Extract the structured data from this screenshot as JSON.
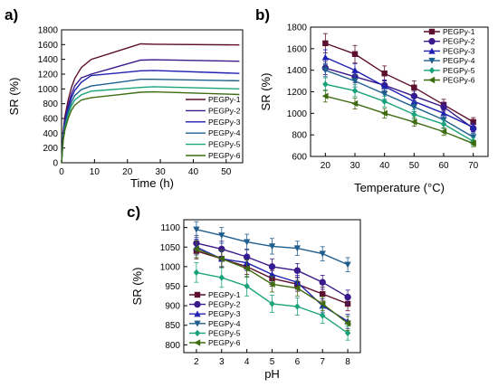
{
  "chart_data": [
    {
      "type": "line",
      "panel_label": "a)",
      "xlabel": "Time (h)",
      "ylabel": "SR (%)",
      "xlim": [
        0,
        55
      ],
      "ylim": [
        0,
        1800
      ],
      "xticks": [
        0,
        10,
        20,
        30,
        40,
        50
      ],
      "yticks": [
        0,
        200,
        400,
        600,
        800,
        1000,
        1200,
        1400,
        1600,
        1800
      ],
      "legend_position": "bottom-right",
      "markers": false,
      "error_bars": false,
      "x": [
        0,
        0.5,
        1,
        2,
        3,
        4,
        6,
        9,
        24,
        28,
        54
      ],
      "series": [
        {
          "name": "PEGPy-1",
          "color": "#5c0f2e",
          "values": [
            0,
            420,
            620,
            850,
            1020,
            1140,
            1290,
            1400,
            1610,
            1605,
            1595
          ]
        },
        {
          "name": "PEGPy-2",
          "color": "#3a1a8a",
          "values": [
            0,
            390,
            570,
            780,
            930,
            1040,
            1150,
            1200,
            1390,
            1395,
            1375
          ]
        },
        {
          "name": "PEGPy-3",
          "color": "#1f1fb0",
          "values": [
            0,
            370,
            540,
            740,
            880,
            980,
            1090,
            1180,
            1245,
            1250,
            1210
          ]
        },
        {
          "name": "PEGPy-4",
          "color": "#1f5f8f",
          "values": [
            0,
            340,
            500,
            690,
            820,
            910,
            990,
            1040,
            1130,
            1130,
            1110
          ]
        },
        {
          "name": "PEGPy-5",
          "color": "#1aa37a",
          "values": [
            0,
            320,
            470,
            650,
            770,
            850,
            920,
            970,
            1020,
            1030,
            1000
          ]
        },
        {
          "name": "PEGPy-6",
          "color": "#3f6b10",
          "values": [
            0,
            300,
            440,
            600,
            710,
            780,
            850,
            880,
            955,
            960,
            925
          ]
        }
      ]
    },
    {
      "type": "line",
      "panel_label": "b)",
      "xlabel": "Temperature (°C)",
      "ylabel": "SR (%)",
      "xlim": [
        15,
        75
      ],
      "ylim": [
        600,
        1800
      ],
      "xticks": [
        20,
        30,
        40,
        50,
        60,
        70
      ],
      "yticks": [
        600,
        800,
        1000,
        1200,
        1400,
        1600,
        1800
      ],
      "legend_position": "top-right",
      "markers": true,
      "error_bars": true,
      "x": [
        20,
        30,
        40,
        50,
        60,
        70
      ],
      "series": [
        {
          "name": "PEGPy-1",
          "color": "#5c0f2e",
          "marker": "square",
          "values": [
            1650,
            1550,
            1370,
            1240,
            1080,
            920
          ],
          "errors": [
            90,
            80,
            70,
            60,
            50,
            40
          ]
        },
        {
          "name": "PEGPy-2",
          "color": "#3a1a8a",
          "marker": "circle",
          "values": [
            1420,
            1340,
            1260,
            1160,
            1060,
            860
          ],
          "errors": [
            60,
            55,
            50,
            45,
            40,
            35
          ]
        },
        {
          "name": "PEGPy-3",
          "color": "#1f1fb0",
          "marker": "triangle-up",
          "values": [
            1520,
            1400,
            1250,
            1110,
            1000,
            870
          ],
          "errors": [
            70,
            60,
            55,
            50,
            45,
            40
          ]
        },
        {
          "name": "PEGPy-4",
          "color": "#1f5f8f",
          "marker": "triangle-down",
          "values": [
            1400,
            1300,
            1180,
            1060,
            940,
            780
          ],
          "errors": [
            60,
            55,
            50,
            45,
            40,
            35
          ]
        },
        {
          "name": "PEGPy-5",
          "color": "#1aa37a",
          "marker": "diamond",
          "values": [
            1270,
            1210,
            1110,
            990,
            900,
            740
          ],
          "errors": [
            60,
            55,
            50,
            45,
            40,
            35
          ]
        },
        {
          "name": "PEGPy-6",
          "color": "#3f6b10",
          "marker": "triangle-left",
          "values": [
            1160,
            1090,
            1000,
            920,
            830,
            720
          ],
          "errors": [
            55,
            50,
            45,
            40,
            35,
            30
          ]
        }
      ]
    },
    {
      "type": "line",
      "panel_label": "c)",
      "xlabel": "pH",
      "ylabel": "SR (%)",
      "xlim": [
        1.5,
        8.5
      ],
      "ylim": [
        780,
        1120
      ],
      "xticks": [
        2,
        3,
        4,
        5,
        6,
        7,
        8
      ],
      "yticks": [
        800,
        850,
        900,
        950,
        1000,
        1050,
        1100
      ],
      "legend_position": "bottom-left",
      "markers": true,
      "error_bars": true,
      "x": [
        2,
        3,
        4,
        5,
        6,
        7,
        8
      ],
      "series": [
        {
          "name": "PEGPy-1",
          "color": "#5c0f2e",
          "marker": "square",
          "values": [
            1040,
            1020,
            1000,
            970,
            955,
            930,
            905
          ],
          "errors": [
            20,
            20,
            20,
            20,
            18,
            18,
            18
          ]
        },
        {
          "name": "PEGPy-2",
          "color": "#3a1a8a",
          "marker": "circle",
          "values": [
            1060,
            1045,
            1025,
            1000,
            990,
            960,
            922
          ],
          "errors": [
            20,
            20,
            20,
            20,
            18,
            18,
            18
          ]
        },
        {
          "name": "PEGPy-3",
          "color": "#1f1fb0",
          "marker": "triangle-up",
          "values": [
            1050,
            1020,
            1010,
            980,
            960,
            900,
            860
          ],
          "errors": [
            20,
            20,
            20,
            20,
            18,
            18,
            18
          ]
        },
        {
          "name": "PEGPy-4",
          "color": "#1f5f8f",
          "marker": "triangle-down",
          "values": [
            1095,
            1080,
            1063,
            1052,
            1047,
            1033,
            1005
          ],
          "errors": [
            20,
            20,
            20,
            20,
            18,
            18,
            18
          ]
        },
        {
          "name": "PEGPy-5",
          "color": "#1aa37a",
          "marker": "diamond",
          "values": [
            985,
            972,
            950,
            905,
            898,
            875,
            830
          ],
          "errors": [
            25,
            25,
            25,
            22,
            22,
            20,
            18
          ]
        },
        {
          "name": "PEGPy-6",
          "color": "#3f6b10",
          "marker": "triangle-left",
          "values": [
            1045,
            1020,
            995,
            955,
            945,
            905,
            855
          ],
          "errors": [
            22,
            22,
            22,
            20,
            20,
            18,
            18
          ]
        }
      ]
    }
  ]
}
